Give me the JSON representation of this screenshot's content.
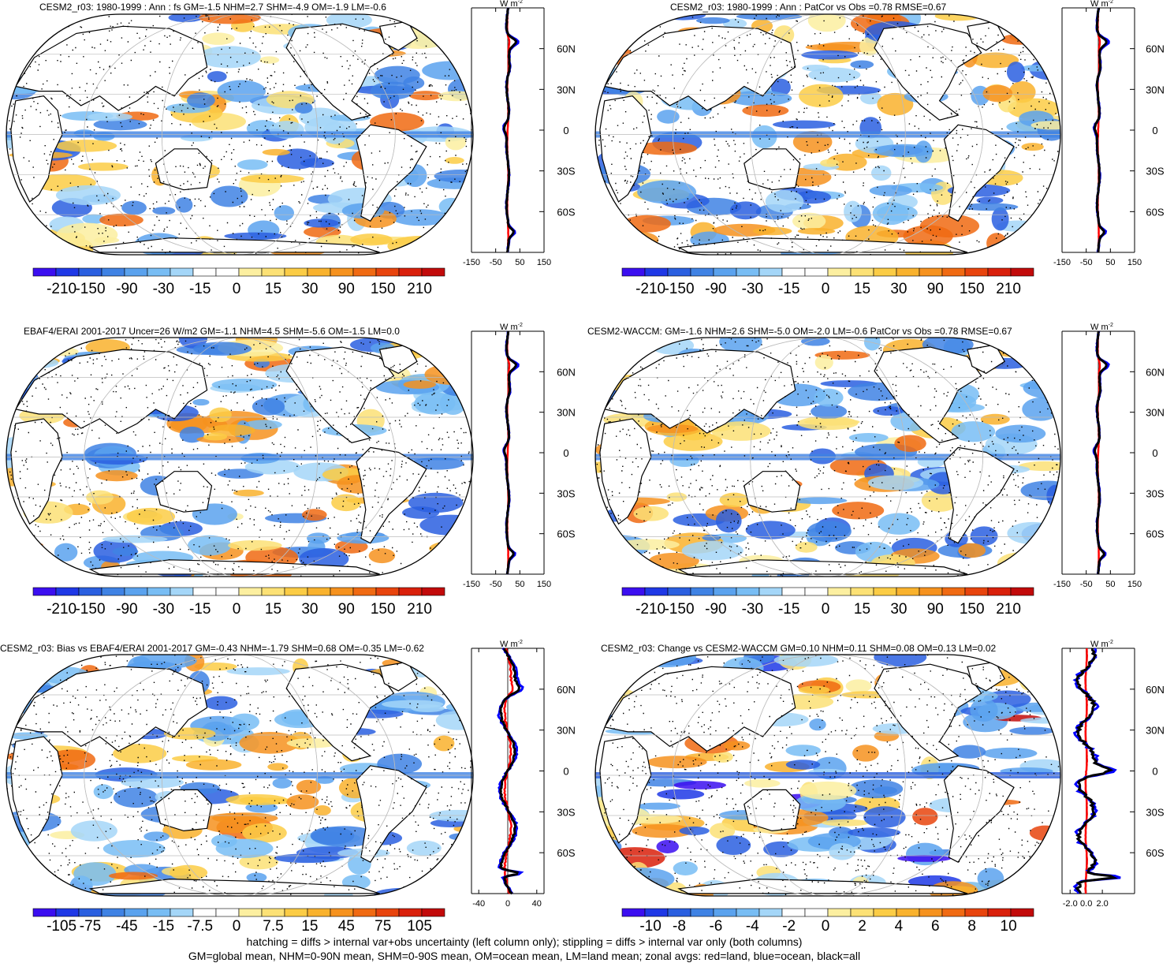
{
  "chart_data": [
    {
      "type": "heatmap",
      "title": "CESM2_r03: 1980-1999 : Ann : fs GM=-1.5 NHM=2.7 SHM=-4.9 OM=-1.9 LM=-0.6",
      "colorbar_labels": [
        "-210",
        "-150",
        "-90",
        "-30",
        "-15",
        "0",
        "15",
        "30",
        "90",
        "150",
        "210"
      ],
      "zonal_ticks": [
        "-150",
        "-50",
        "50",
        "150"
      ],
      "zonal_xlim": [
        -150,
        150
      ],
      "lat_labels": [
        "60N",
        "30N",
        "0",
        "30S",
        "60S"
      ],
      "units": "W m",
      "units_exp": "-2"
    },
    {
      "type": "heatmap",
      "title": "CESM2_r03: 1980-1999 : Ann : PatCor vs Obs =0.78 RMSE=0.67",
      "colorbar_labels": [
        "-210",
        "-150",
        "-90",
        "-30",
        "-15",
        "0",
        "15",
        "30",
        "90",
        "150",
        "210"
      ],
      "zonal_ticks": [
        "-150",
        "-50",
        "50",
        "150"
      ],
      "zonal_xlim": [
        -150,
        150
      ],
      "lat_labels": [
        "60N",
        "30N",
        "0",
        "30S",
        "60S"
      ],
      "units": "W m",
      "units_exp": "-2"
    },
    {
      "type": "heatmap",
      "title": "EBAF4/ERAI 2001-2017 Uncer=26 W/m2 GM=-1.1 NHM=4.5 SHM=-5.6 OM=-1.5 LM=0.0",
      "colorbar_labels": [
        "-210",
        "-150",
        "-90",
        "-30",
        "-15",
        "0",
        "15",
        "30",
        "90",
        "150",
        "210"
      ],
      "zonal_ticks": [
        "-150",
        "-50",
        "50",
        "150"
      ],
      "zonal_xlim": [
        -150,
        150
      ],
      "lat_labels": [
        "60N",
        "30N",
        "0",
        "30S",
        "60S"
      ],
      "units": "W m",
      "units_exp": "-2"
    },
    {
      "type": "heatmap",
      "title": "CESM2-WACCM: GM=-1.6 NHM=2.6 SHM=-5.0 OM=-2.0 LM=-0.6 PatCor vs Obs =0.78 RMSE=0.67",
      "colorbar_labels": [
        "-210",
        "-150",
        "-90",
        "-30",
        "-15",
        "0",
        "15",
        "30",
        "90",
        "150",
        "210"
      ],
      "zonal_ticks": [
        "-150",
        "-50",
        "50",
        "150"
      ],
      "zonal_xlim": [
        -150,
        150
      ],
      "lat_labels": [
        "60N",
        "30N",
        "0",
        "30S",
        "60S"
      ],
      "units": "W m",
      "units_exp": "-2"
    },
    {
      "type": "heatmap",
      "title": "CESM2_r03: Bias vs EBAF4/ERAI 2001-2017 GM=-0.43 NHM=-1.79 SHM=0.68 OM=-0.35 LM=-0.62",
      "colorbar_labels": [
        "-105",
        "-75",
        "-45",
        "-15",
        "-7.5",
        "0",
        "7.5",
        "15",
        "45",
        "75",
        "105"
      ],
      "zonal_ticks": [
        "-40",
        "0",
        "40"
      ],
      "zonal_xlim": [
        -50,
        50
      ],
      "lat_labels": [
        "60N",
        "30N",
        "0",
        "30S",
        "60S"
      ],
      "units": "W m",
      "units_exp": "-2"
    },
    {
      "type": "heatmap",
      "title": "CESM2_r03: Change vs CESM2-WACCM GM=0.10 NHM=0.11 SHM=0.08 OM=0.13 LM=0.02",
      "colorbar_labels": [
        "-10",
        "-8",
        "-6",
        "-4",
        "-2",
        "0",
        "2",
        "4",
        "6",
        "8",
        "10"
      ],
      "zonal_ticks": [
        "-2.0",
        "0.0",
        "2.0"
      ],
      "zonal_xlim": [
        -3,
        6
      ],
      "lat_labels": [
        "60N",
        "30N",
        "0",
        "30S",
        "60S"
      ],
      "units": "W m",
      "units_exp": "-2"
    }
  ],
  "colormap": [
    "#3b0ef0",
    "#1f38e6",
    "#2a5fe0",
    "#3f82e4",
    "#5aa2ee",
    "#78bdf4",
    "#a4d6f8",
    "#ffffff",
    "#ffffff",
    "#fcefa0",
    "#fce175",
    "#fbcc45",
    "#f9b22d",
    "#f6921e",
    "#f06a12",
    "#e8440d",
    "#d9200b",
    "#c20a0a"
  ],
  "zonal_colors": {
    "land": "#ff0000",
    "ocean": "#0000ff",
    "all": "#000000"
  },
  "footer": {
    "line1": "hatching = diffs > internal var+obs uncertainty (left column only); stippling = diffs > internal var only (both columns)",
    "line2": "GM=global mean, NHM=0-90N mean, SHM=0-90S mean, OM=ocean mean, LM=land mean; zonal avgs: red=land, blue=ocean, black=all"
  }
}
